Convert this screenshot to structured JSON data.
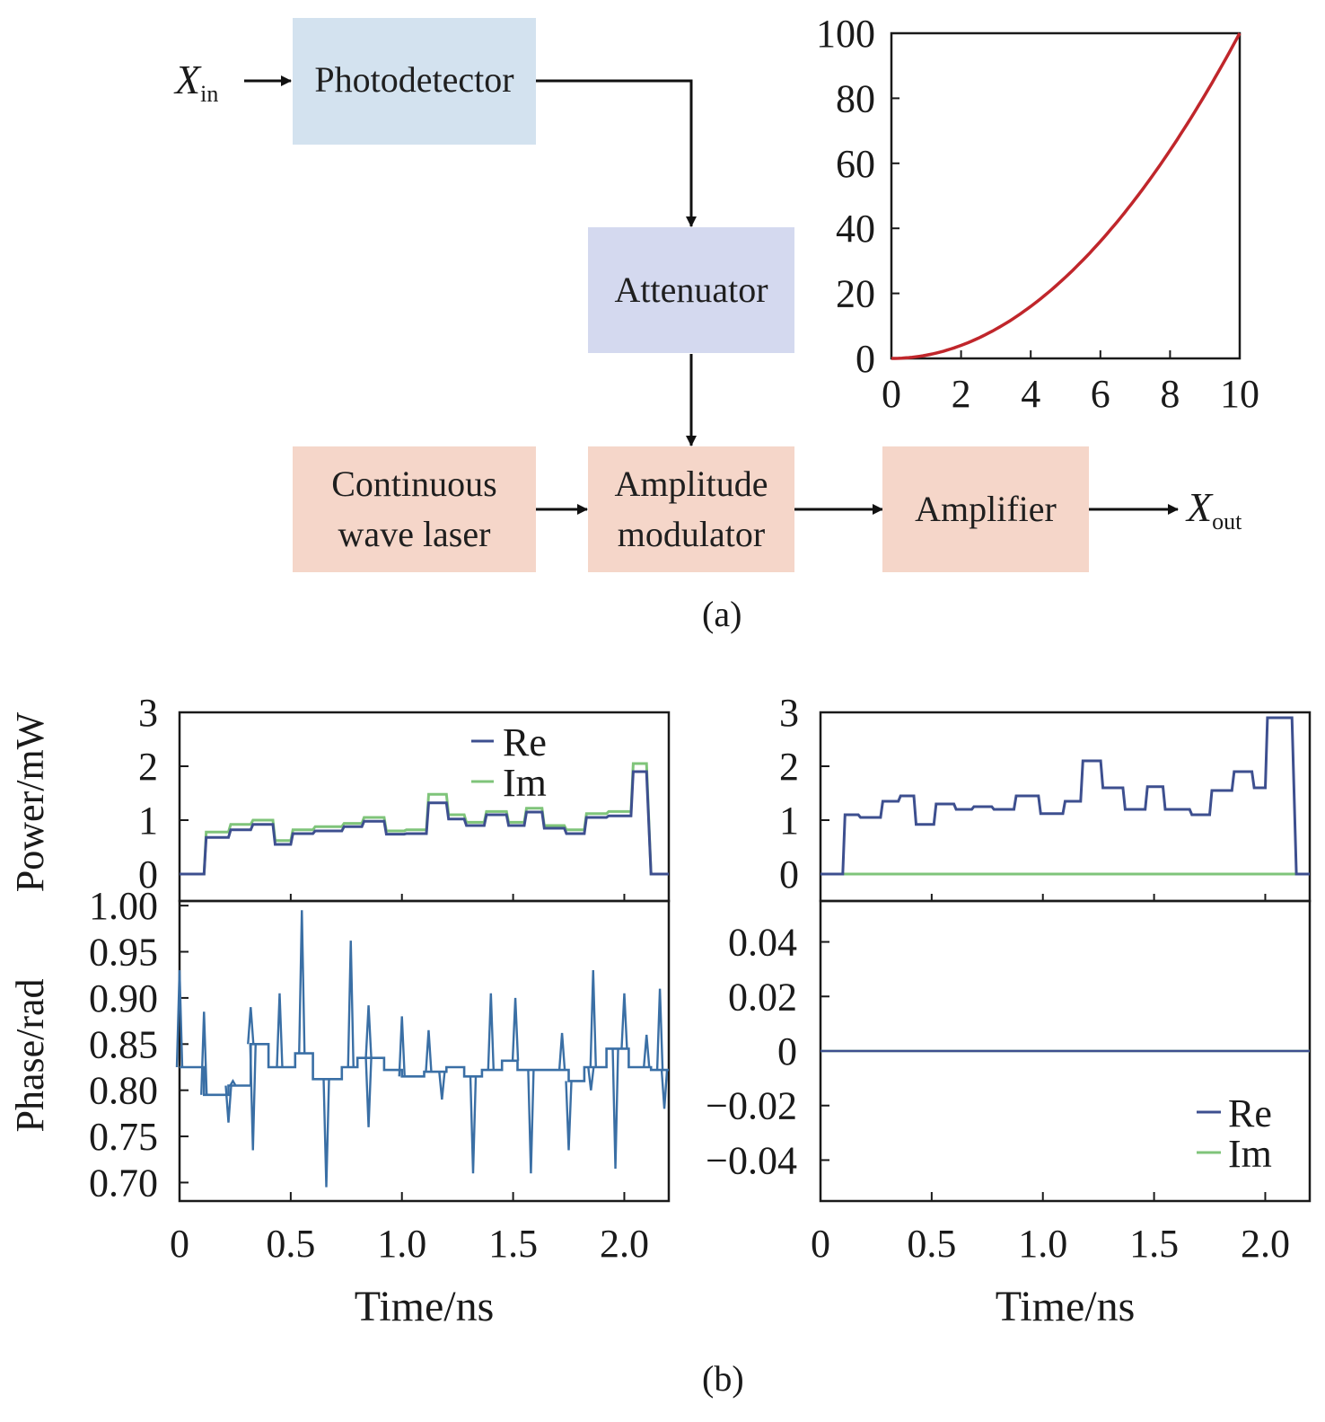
{
  "diagram": {
    "input_symbol": "X",
    "input_sub": "in",
    "output_symbol": "X",
    "output_sub": "out",
    "blocks": {
      "photodetector": "Photodetector",
      "attenuator": "Attenuator",
      "laser_line1": "Continuous",
      "laser_line2": "wave laser",
      "modulator_line1": "Amplitude",
      "modulator_line2": "modulator",
      "amplifier": "Amplifier"
    },
    "caption_a": "(a)",
    "caption_b": "(b)"
  },
  "colors": {
    "curve_red": "#c0262b",
    "re_line": "#3d4f8f",
    "im_line": "#7fc47a",
    "phase_line": "#3a6fa5",
    "axis": "#1a1a1a"
  },
  "chart_data": [
    {
      "id": "transfer",
      "type": "line",
      "title": "",
      "xlabel": "",
      "ylabel": "",
      "xlim": [
        0,
        10
      ],
      "ylim": [
        0,
        100
      ],
      "xticks": [
        "0",
        "2",
        "4",
        "6",
        "8",
        "10"
      ],
      "yticks": [
        "0",
        "20",
        "40",
        "60",
        "80",
        "100"
      ],
      "series": [
        {
          "name": "transfer",
          "x": [
            0,
            1,
            2,
            3,
            4,
            5,
            6,
            7,
            8,
            9,
            10
          ],
          "y": [
            0,
            1,
            4,
            9,
            16,
            25,
            36,
            49,
            64,
            81,
            100
          ]
        }
      ]
    },
    {
      "id": "power_left",
      "type": "line",
      "ylabel": "Power/mW",
      "xlim": [
        0,
        2.2
      ],
      "ylim": [
        -0.5,
        3
      ],
      "yticks": [
        "0",
        "1",
        "2",
        "3"
      ],
      "legend": [
        "Re",
        "Im"
      ],
      "legend_position": "top-right",
      "series": [
        {
          "name": "Re",
          "x": [
            0,
            0.11,
            0.12,
            0.22,
            0.23,
            0.32,
            0.33,
            0.42,
            0.43,
            0.5,
            0.51,
            0.6,
            0.61,
            0.73,
            0.74,
            0.82,
            0.83,
            0.92,
            0.93,
            1.01,
            1.02,
            1.11,
            1.12,
            1.2,
            1.21,
            1.28,
            1.29,
            1.37,
            1.38,
            1.47,
            1.48,
            1.55,
            1.56,
            1.63,
            1.64,
            1.73,
            1.74,
            1.82,
            1.83,
            1.92,
            1.93,
            2.03,
            2.04,
            2.1,
            2.12,
            2.2
          ],
          "y": [
            0,
            0,
            0.68,
            0.68,
            0.82,
            0.82,
            0.92,
            0.92,
            0.55,
            0.55,
            0.75,
            0.75,
            0.8,
            0.8,
            0.88,
            0.88,
            0.98,
            0.98,
            0.74,
            0.74,
            0.75,
            0.75,
            1.32,
            1.32,
            1.02,
            1.02,
            0.9,
            0.9,
            1.1,
            1.1,
            0.9,
            0.9,
            1.15,
            1.15,
            0.85,
            0.85,
            0.75,
            0.75,
            1.05,
            1.05,
            1.08,
            1.08,
            1.9,
            1.9,
            0,
            0
          ]
        },
        {
          "name": "Im",
          "x": [
            0,
            0.11,
            0.12,
            0.22,
            0.23,
            0.32,
            0.33,
            0.42,
            0.43,
            0.5,
            0.51,
            0.6,
            0.61,
            0.73,
            0.74,
            0.82,
            0.83,
            0.92,
            0.93,
            1.01,
            1.02,
            1.11,
            1.12,
            1.2,
            1.21,
            1.28,
            1.29,
            1.37,
            1.38,
            1.47,
            1.48,
            1.55,
            1.56,
            1.63,
            1.64,
            1.73,
            1.74,
            1.82,
            1.83,
            1.92,
            1.93,
            2.03,
            2.04,
            2.1,
            2.12,
            2.2
          ],
          "y": [
            0,
            0,
            0.78,
            0.78,
            0.92,
            0.92,
            1.0,
            1.0,
            0.62,
            0.62,
            0.82,
            0.82,
            0.88,
            0.88,
            0.94,
            0.94,
            1.05,
            1.05,
            0.8,
            0.8,
            0.82,
            0.82,
            1.48,
            1.48,
            1.1,
            1.1,
            0.96,
            0.96,
            1.16,
            1.16,
            0.96,
            0.96,
            1.22,
            1.22,
            0.9,
            0.9,
            0.82,
            0.82,
            1.12,
            1.12,
            1.16,
            1.16,
            2.05,
            2.05,
            0,
            0
          ]
        }
      ]
    },
    {
      "id": "power_right",
      "type": "line",
      "xlim": [
        0,
        2.2
      ],
      "ylim": [
        -0.5,
        3
      ],
      "yticks": [
        "0",
        "1",
        "2",
        "3"
      ],
      "series": [
        {
          "name": "Re",
          "x": [
            0,
            0.1,
            0.11,
            0.17,
            0.18,
            0.27,
            0.28,
            0.35,
            0.36,
            0.42,
            0.43,
            0.51,
            0.52,
            0.6,
            0.61,
            0.68,
            0.69,
            0.77,
            0.78,
            0.87,
            0.88,
            0.98,
            0.99,
            1.09,
            1.1,
            1.17,
            1.18,
            1.26,
            1.27,
            1.36,
            1.37,
            1.46,
            1.47,
            1.54,
            1.55,
            1.66,
            1.67,
            1.75,
            1.76,
            1.85,
            1.86,
            1.94,
            1.95,
            2.0,
            2.01,
            2.12,
            2.14,
            2.2
          ],
          "y": [
            0,
            0,
            1.1,
            1.1,
            1.05,
            1.05,
            1.35,
            1.35,
            1.45,
            1.45,
            0.92,
            0.92,
            1.3,
            1.3,
            1.2,
            1.2,
            1.25,
            1.25,
            1.2,
            1.2,
            1.45,
            1.45,
            1.12,
            1.12,
            1.35,
            1.35,
            2.1,
            2.1,
            1.6,
            1.6,
            1.2,
            1.2,
            1.62,
            1.62,
            1.2,
            1.2,
            1.1,
            1.1,
            1.55,
            1.55,
            1.9,
            1.9,
            1.6,
            1.6,
            2.9,
            2.9,
            0,
            0
          ]
        },
        {
          "name": "Im",
          "x": [
            0,
            2.2
          ],
          "y": [
            0,
            0
          ]
        }
      ]
    },
    {
      "id": "phase_left",
      "type": "line",
      "ylabel": "Phase/rad",
      "xlabel": "Time/ns",
      "xlim": [
        0,
        2.2
      ],
      "ylim": [
        0.68,
        1.005
      ],
      "xticks": [
        "0",
        "0.5",
        "1.0",
        "1.5",
        "2.0"
      ],
      "yticks": [
        "0.70",
        "0.75",
        "0.80",
        "0.85",
        "0.90",
        "0.95",
        "1.00"
      ],
      "series": [
        {
          "name": "Phase",
          "levels": [
            0.825,
            0.795,
            0.805,
            0.85,
            0.825,
            0.84,
            0.812,
            0.825,
            0.835,
            0.822,
            0.815,
            0.82,
            0.825,
            0.815,
            0.822,
            0.832,
            0.822,
            0.822,
            0.81,
            0.825,
            0.845,
            0.825,
            0.822
          ],
          "breaks": [
            0,
            0.11,
            0.22,
            0.32,
            0.4,
            0.52,
            0.6,
            0.73,
            0.8,
            0.92,
            1.0,
            1.1,
            1.2,
            1.28,
            1.36,
            1.45,
            1.52,
            1.62,
            1.75,
            1.82,
            1.92,
            2.02,
            2.12,
            2.2
          ],
          "spikes": [
            [
              0.0,
              0.93
            ],
            [
              0.11,
              0.885
            ],
            [
              0.22,
              0.765
            ],
            [
              0.24,
              0.81
            ],
            [
              0.32,
              0.89
            ],
            [
              0.33,
              0.735
            ],
            [
              0.45,
              0.905
            ],
            [
              0.55,
              0.995
            ],
            [
              0.66,
              0.695
            ],
            [
              0.77,
              0.962
            ],
            [
              0.85,
              0.892
            ],
            [
              0.85,
              0.76
            ],
            [
              1.0,
              0.88
            ],
            [
              1.12,
              0.865
            ],
            [
              1.18,
              0.79
            ],
            [
              1.32,
              0.71
            ],
            [
              1.4,
              0.905
            ],
            [
              1.51,
              0.9
            ],
            [
              1.58,
              0.71
            ],
            [
              1.72,
              0.862
            ],
            [
              1.75,
              0.735
            ],
            [
              1.85,
              0.8
            ],
            [
              1.86,
              0.93
            ],
            [
              1.96,
              0.715
            ],
            [
              2.0,
              0.905
            ],
            [
              2.1,
              0.86
            ],
            [
              2.16,
              0.91
            ],
            [
              2.18,
              0.78
            ]
          ]
        }
      ]
    },
    {
      "id": "phase_right",
      "type": "line",
      "xlabel": "Time/ns",
      "xlim": [
        0,
        2.2
      ],
      "ylim": [
        -0.055,
        0.055
      ],
      "xticks": [
        "0",
        "0.5",
        "1.0",
        "1.5",
        "2.0"
      ],
      "yticks": [
        "−0.04",
        "−0.02",
        "0",
        "0.02",
        "0.04"
      ],
      "legend": [
        "Re",
        "Im"
      ],
      "legend_position": "bottom-right",
      "series": [
        {
          "name": "Re",
          "x": [
            0,
            2.2
          ],
          "y": [
            0,
            0
          ]
        },
        {
          "name": "Im",
          "x": [
            0,
            2.2
          ],
          "y": [
            0,
            0
          ]
        }
      ]
    }
  ]
}
